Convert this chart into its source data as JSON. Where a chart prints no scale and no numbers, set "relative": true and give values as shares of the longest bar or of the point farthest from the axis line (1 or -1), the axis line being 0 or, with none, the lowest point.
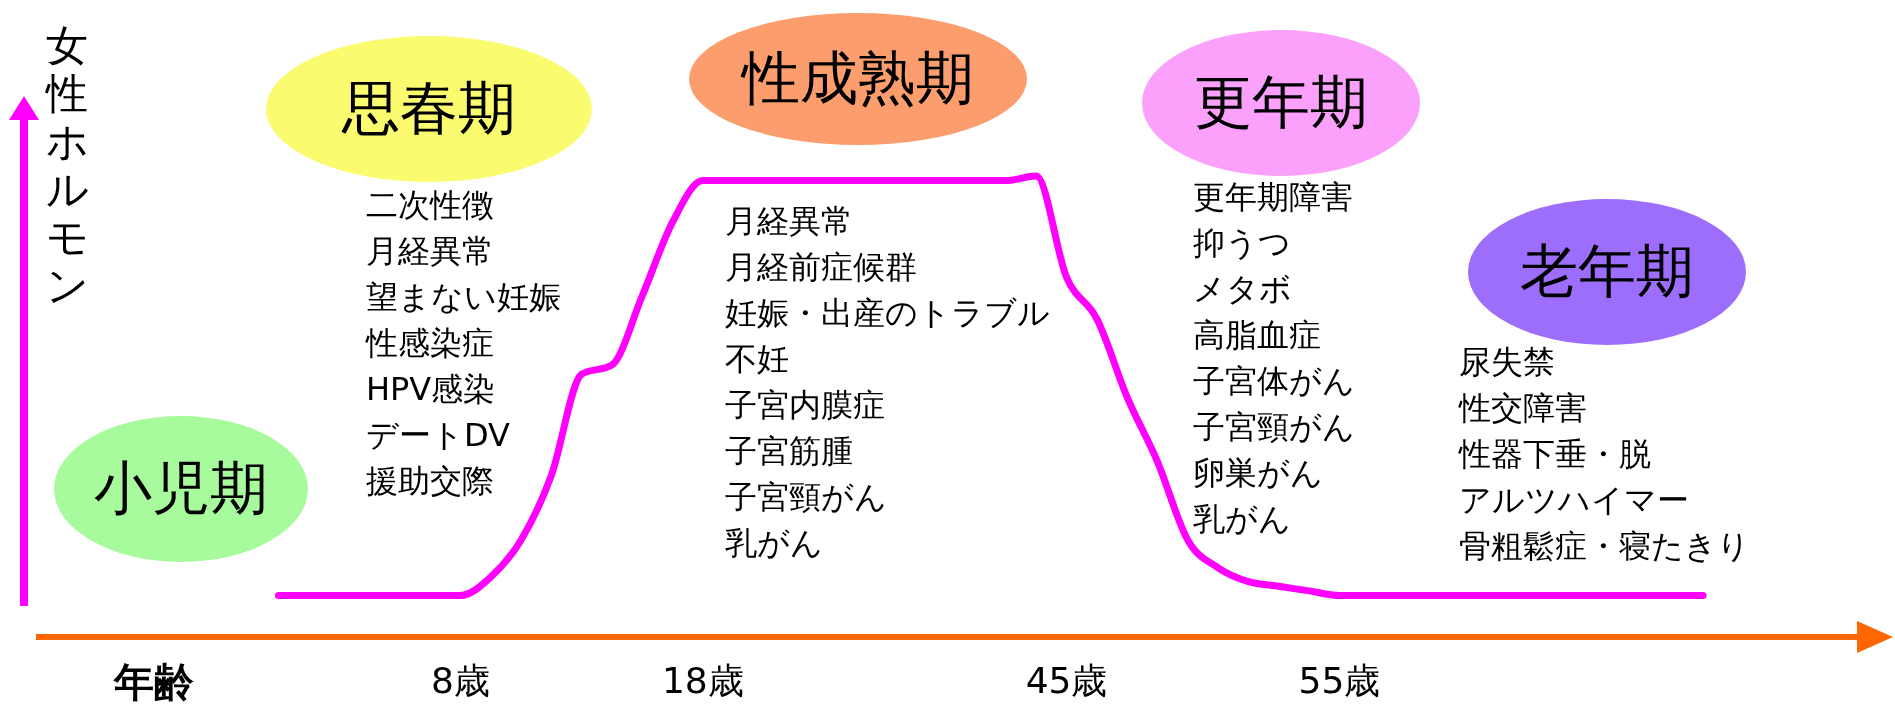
{
  "chart_data": {
    "type": "line",
    "relative": true,
    "xlabel": "年齢",
    "ylabel": "女性ホルモン",
    "categories": [
      null,
      null,
      null,
      null,
      null,
      null,
      null,
      null,
      null,
      null,
      null,
      null,
      null,
      null,
      "8歳",
      null,
      null,
      null,
      null,
      null,
      null,
      null,
      "18歳",
      null,
      null,
      null,
      null,
      null,
      null,
      null,
      null,
      null,
      null,
      null,
      "45歳",
      null,
      null,
      null,
      null,
      null,
      null,
      null,
      null,
      "55歳",
      null,
      null,
      null,
      null,
      null,
      null,
      null,
      null,
      null,
      null,
      null,
      null,
      null,
      null,
      null,
      null,
      null,
      null
    ],
    "series": [
      {
        "color": "#ff00ff",
        "values": [
          null,
          null,
          null,
          null,
          null,
          null,
          null,
          null,
          0.09,
          0.09,
          0.09,
          0.09,
          0.09,
          0.09,
          0.09,
          0.13,
          0.21,
          0.35,
          0.57,
          0.59,
          0.74,
          0.9,
          0.99,
          0.99,
          0.99,
          0.99,
          0.99,
          0.99,
          0.99,
          0.99,
          0.99,
          0.99,
          0.99,
          1,
          0.78,
          0.69,
          0.52,
          0.38,
          0.21,
          0.15,
          0.12,
          0.11,
          0.1,
          0.09,
          0.09,
          0.09,
          0.09,
          0.09,
          0.09,
          0.09,
          0.09,
          0.09,
          0.09,
          0.09,
          0.09,
          0.09,
          null,
          null,
          null,
          null,
          null,
          null
        ]
      }
    ],
    "annotations": [
      "小児期",
      "思春期",
      "性成熟期",
      "更年期",
      "老年期",
      "二次性徴",
      "月経異常",
      "望まない妊娠",
      "性感染症",
      "HPV感染",
      "デートDV",
      "援助交際",
      "月経異常",
      "月経前症候群",
      "妊娠・出産のトラブル",
      "不妊",
      "子宮内膜症",
      "子宮筋腫",
      "子宮頸がん",
      "乳がん",
      "更年期障害",
      "抑うつ",
      "メタボ",
      "高脂血症",
      "子宮体がん",
      "子宮頸がん",
      "卵巣がん",
      "乳がん",
      "尿失禁",
      "性交障害",
      "性器下垂・脱",
      "アルツハイマー",
      "骨粗鬆症・寝たきり"
    ]
  }
}
